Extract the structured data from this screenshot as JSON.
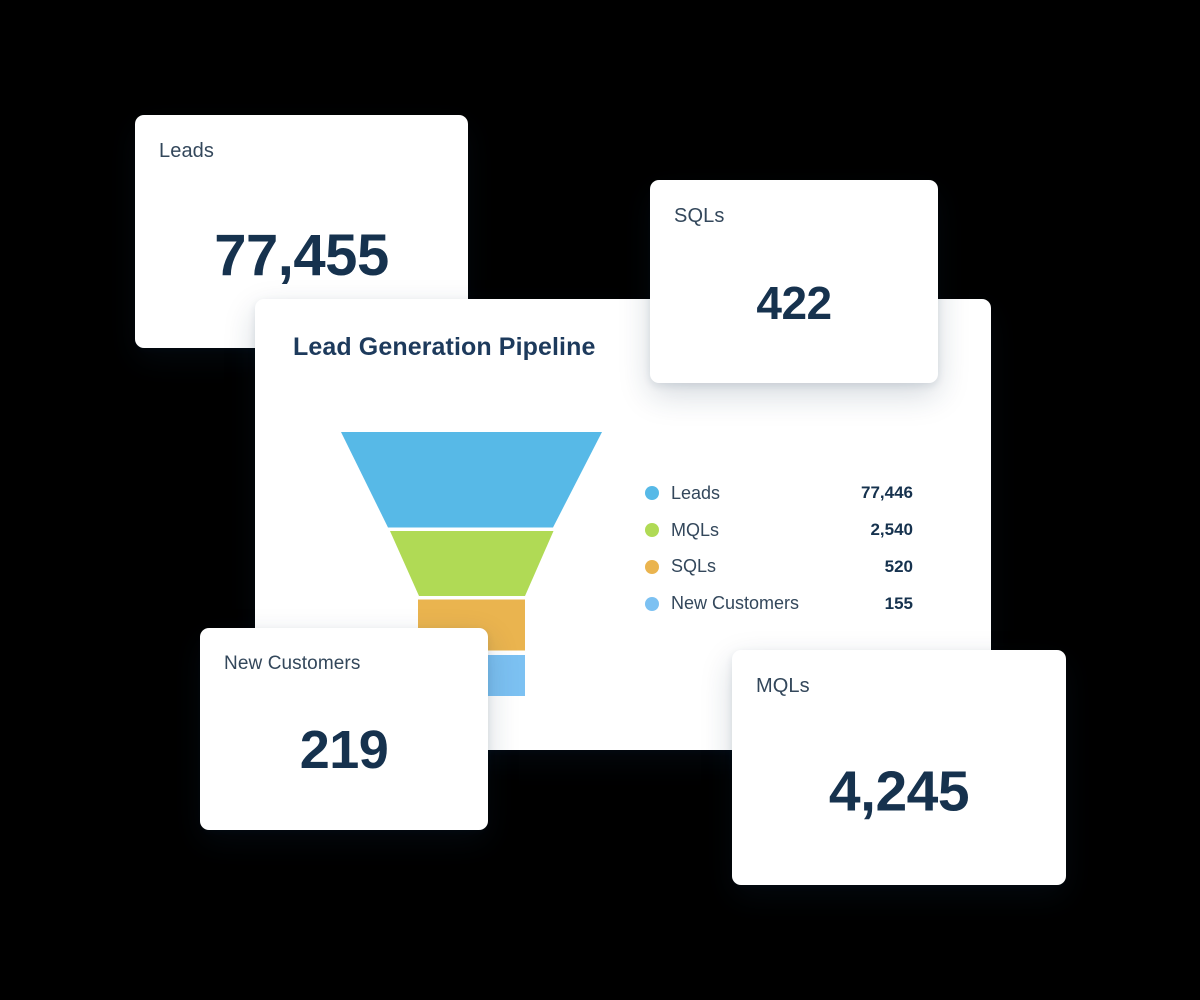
{
  "canvas": {
    "background": "#000000",
    "card_background": "#FFFFFF"
  },
  "colors": {
    "label_text": "#33475B",
    "value_text": "#16324E",
    "funnel_blue": "#57B9E7",
    "funnel_green": "#B0DA55",
    "funnel_orange": "#EAB44F",
    "funnel_light_blue": "#7CC1F2"
  },
  "cards": {
    "leads": {
      "label": "Leads",
      "value": "77,455"
    },
    "sqls": {
      "label": "SQLs",
      "value": "422"
    },
    "new_customers": {
      "label": "New Customers",
      "value": "219"
    },
    "mqls": {
      "label": "MQLs",
      "value": "4,245"
    }
  },
  "pipeline": {
    "title": "Lead Generation Pipeline",
    "legend": [
      {
        "label": "Leads",
        "value": "77,446",
        "color": "#57B9E7"
      },
      {
        "label": "MQLs",
        "value": "2,540",
        "color": "#B0DA55"
      },
      {
        "label": "SQLs",
        "value": "520",
        "color": "#EAB44F"
      },
      {
        "label": "New Customers",
        "value": "155",
        "color": "#7CC1F2"
      }
    ]
  },
  "chart_data": {
    "type": "funnel",
    "title": "Lead Generation Pipeline",
    "categories": [
      "Leads",
      "MQLs",
      "SQLs",
      "New Customers"
    ],
    "values": [
      77446,
      2540,
      520,
      155
    ],
    "colors": [
      "#57B9E7",
      "#B0DA55",
      "#EAB44F",
      "#7CC1F2"
    ],
    "legend_position": "right",
    "grid": false,
    "kpi_tiles": [
      {
        "label": "Leads",
        "value": 77455
      },
      {
        "label": "SQLs",
        "value": 422
      },
      {
        "label": "New Customers",
        "value": 219
      },
      {
        "label": "MQLs",
        "value": 4245
      }
    ]
  }
}
